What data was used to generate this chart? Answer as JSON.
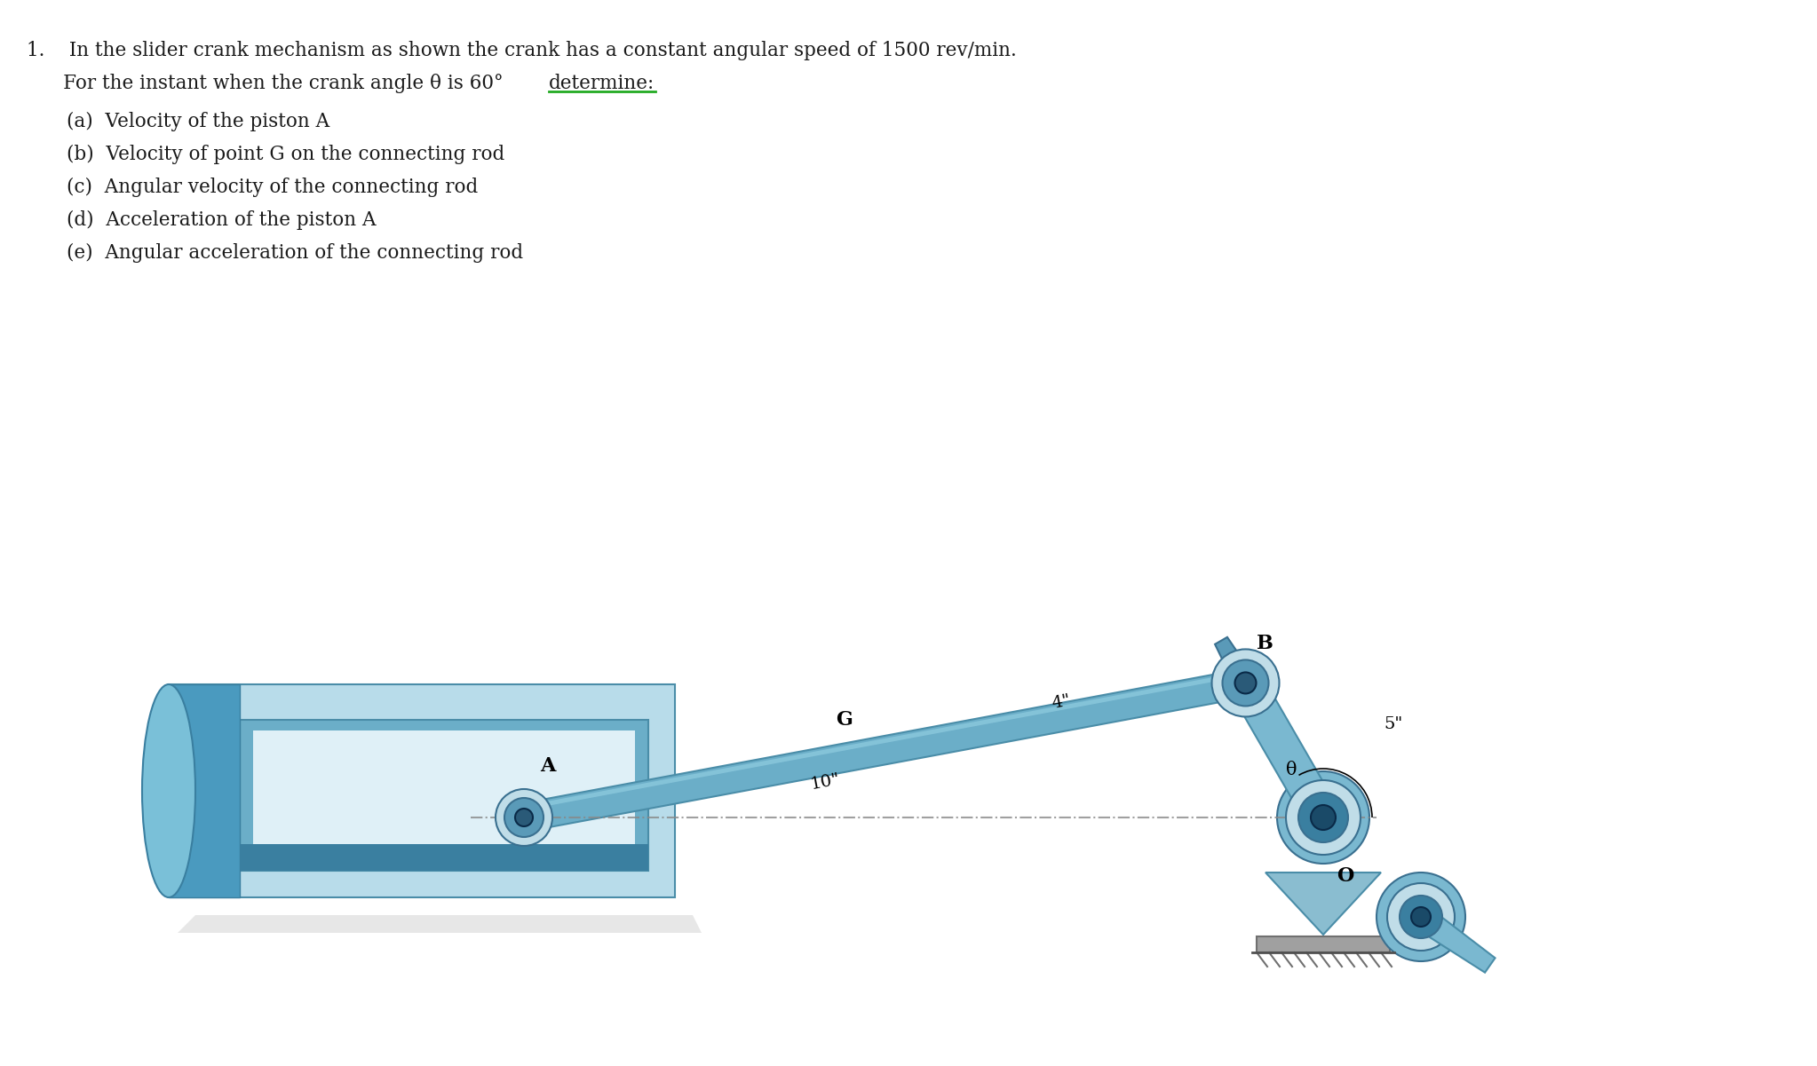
{
  "title_line1": "1.    In the slider crank mechanism as shown the crank has a constant angular speed of 1500 rev/min.",
  "title_line2_pre": "      For the instant when the crank angle θ is 60°  ",
  "title_line2_under": "determine:",
  "items": [
    "(a)  Velocity of the piston A",
    "(b)  Velocity of point G on the connecting rod",
    "(c)  Angular velocity of the connecting rod",
    "(d)  Acceleration of the piston A",
    "(e)  Angular acceleration of the connecting rod"
  ],
  "bg_color": "#ffffff",
  "text_color": "#1a1a1a",
  "text_fontsize": 15.5,
  "diagram": {
    "color_light": "#b8dcea",
    "color_mid": "#6baec8",
    "color_dark": "#4a8da8",
    "color_darker": "#3a7fa0",
    "color_darkest": "#2a5a78",
    "color_highlight": "#90cce0",
    "color_bearing_outer": "#c0dde8",
    "color_bearing_mid": "#5a9ab8",
    "color_bearing_inner": "#2a5a78",
    "color_bearing_core": "#1a4a68",
    "color_ground": "#a0a0a0",
    "color_ground_dark": "#707070",
    "color_dashed": "#888888",
    "label_B": "B",
    "label_G": "G",
    "label_A": "A",
    "label_O": "O",
    "label_theta": "θ",
    "label_10in": "10\"",
    "label_4in": "4\"",
    "label_5in": "5\"",
    "label_fontsize": 16,
    "dim_fontsize": 14
  }
}
